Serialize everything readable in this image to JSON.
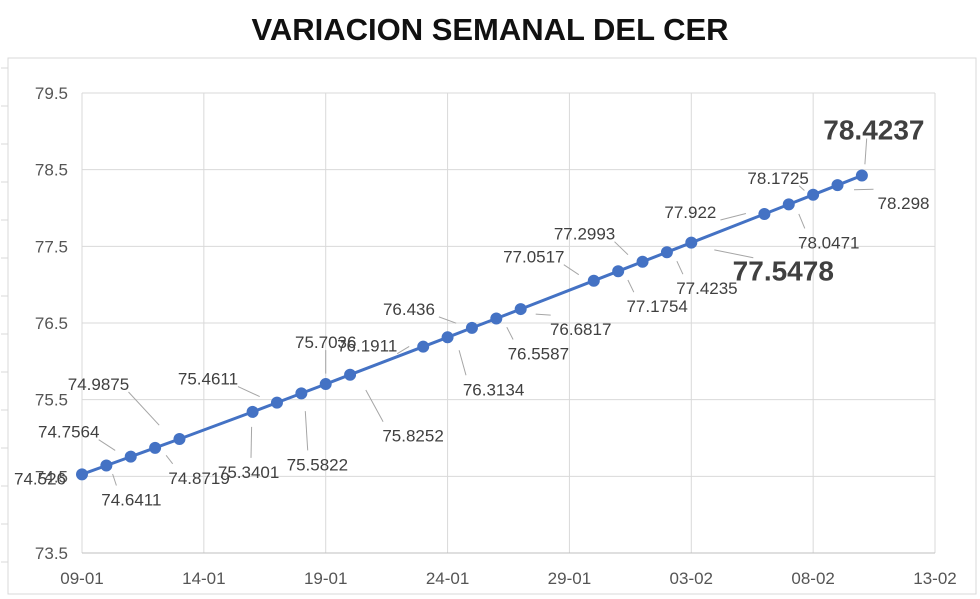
{
  "chart_data": {
    "type": "line",
    "title": "VARIACION SEMANAL DEL CER",
    "xlabel": "",
    "ylabel": "",
    "x_ticks": [
      "09-01",
      "14-01",
      "19-01",
      "24-01",
      "29-01",
      "03-02",
      "08-02",
      "13-02"
    ],
    "y_ticks": [
      "73.5",
      "74.5",
      "75.5",
      "76.5",
      "77.5",
      "78.5",
      "79.5"
    ],
    "ylim": [
      73.5,
      79.5
    ],
    "xlim": [
      "2020-01-09",
      "2020-02-13"
    ],
    "grid": true,
    "line_color": "#4472C4",
    "points": [
      {
        "x": "2020-01-09",
        "y": 74.526,
        "label": "74.526"
      },
      {
        "x": "2020-01-10",
        "y": 74.6411,
        "label": "74.6411"
      },
      {
        "x": "2020-01-11",
        "y": 74.7564,
        "label": "74.7564"
      },
      {
        "x": "2020-01-12",
        "y": 74.8719,
        "label": "74.8719"
      },
      {
        "x": "2020-01-13",
        "y": 74.9875,
        "label": "74.9875"
      },
      {
        "x": "2020-01-16",
        "y": 75.3401,
        "label": "75.3401"
      },
      {
        "x": "2020-01-17",
        "y": 75.4611,
        "label": "75.4611"
      },
      {
        "x": "2020-01-18",
        "y": 75.5822,
        "label": "75.5822"
      },
      {
        "x": "2020-01-19",
        "y": 75.7036,
        "label": "75.7036"
      },
      {
        "x": "2020-01-20",
        "y": 75.8252,
        "label": "75.8252"
      },
      {
        "x": "2020-01-23",
        "y": 76.1911,
        "label": "76.1911"
      },
      {
        "x": "2020-01-24",
        "y": 76.3134,
        "label": "76.3134"
      },
      {
        "x": "2020-01-25",
        "y": 76.436,
        "label": "76.436"
      },
      {
        "x": "2020-01-26",
        "y": 76.5587,
        "label": "76.5587"
      },
      {
        "x": "2020-01-27",
        "y": 76.6817,
        "label": "76.6817"
      },
      {
        "x": "2020-01-30",
        "y": 77.0517,
        "label": "77.0517"
      },
      {
        "x": "2020-01-31",
        "y": 77.1754,
        "label": "77.1754"
      },
      {
        "x": "2020-02-01",
        "y": 77.2993,
        "label": "77.2993"
      },
      {
        "x": "2020-02-02",
        "y": 77.4235,
        "label": "77.4235"
      },
      {
        "x": "2020-02-03",
        "y": 77.5478,
        "label": "77.5478",
        "emphasis": true
      },
      {
        "x": "2020-02-06",
        "y": 77.922,
        "label": "77.922"
      },
      {
        "x": "2020-02-07",
        "y": 78.0471,
        "label": "78.0471"
      },
      {
        "x": "2020-02-08",
        "y": 78.1725,
        "label": "78.1725"
      },
      {
        "x": "2020-02-09",
        "y": 78.298,
        "label": "78.298"
      },
      {
        "x": "2020-02-10",
        "y": 78.4237,
        "label": "78.4237",
        "emphasis": true
      }
    ]
  }
}
